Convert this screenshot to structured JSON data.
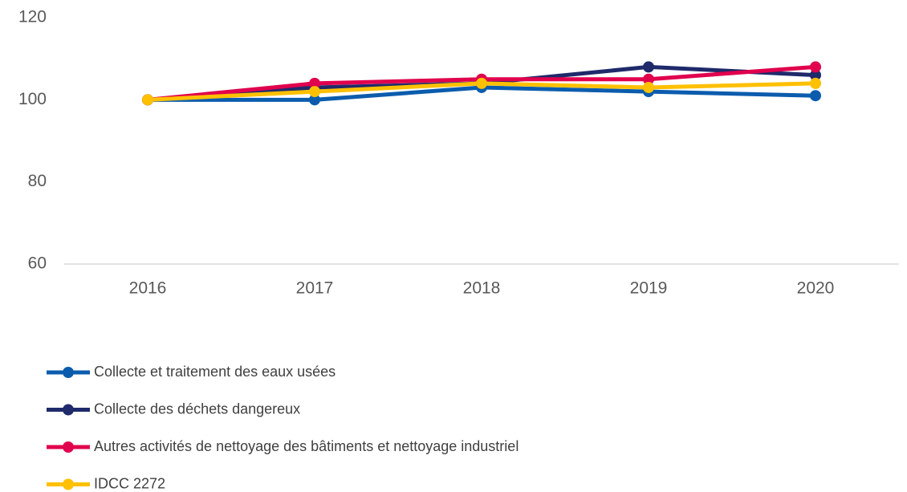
{
  "chart_data": {
    "type": "line",
    "categories": [
      "2016",
      "2017",
      "2018",
      "2019",
      "2020"
    ],
    "series": [
      {
        "name": "Collecte et traitement des eaux usées",
        "color": "#0b5cad",
        "values": [
          100,
          100,
          103,
          102,
          101
        ]
      },
      {
        "name": "Collecte des déchets dangereux",
        "color": "#1f2a6b",
        "values": [
          100,
          103,
          104,
          108,
          106
        ]
      },
      {
        "name": "Autres activités de nettoyage des bâtiments et nettoyage industriel",
        "color": "#e0004d",
        "values": [
          100,
          104,
          105,
          105,
          108
        ]
      },
      {
        "name": "IDCC 2272",
        "color": "#ffc000",
        "values": [
          100,
          102,
          104,
          103,
          104
        ]
      }
    ],
    "ylim": [
      60,
      120
    ],
    "yticks": [
      60,
      80,
      100,
      120
    ],
    "grid": false,
    "legend": "bottom"
  }
}
